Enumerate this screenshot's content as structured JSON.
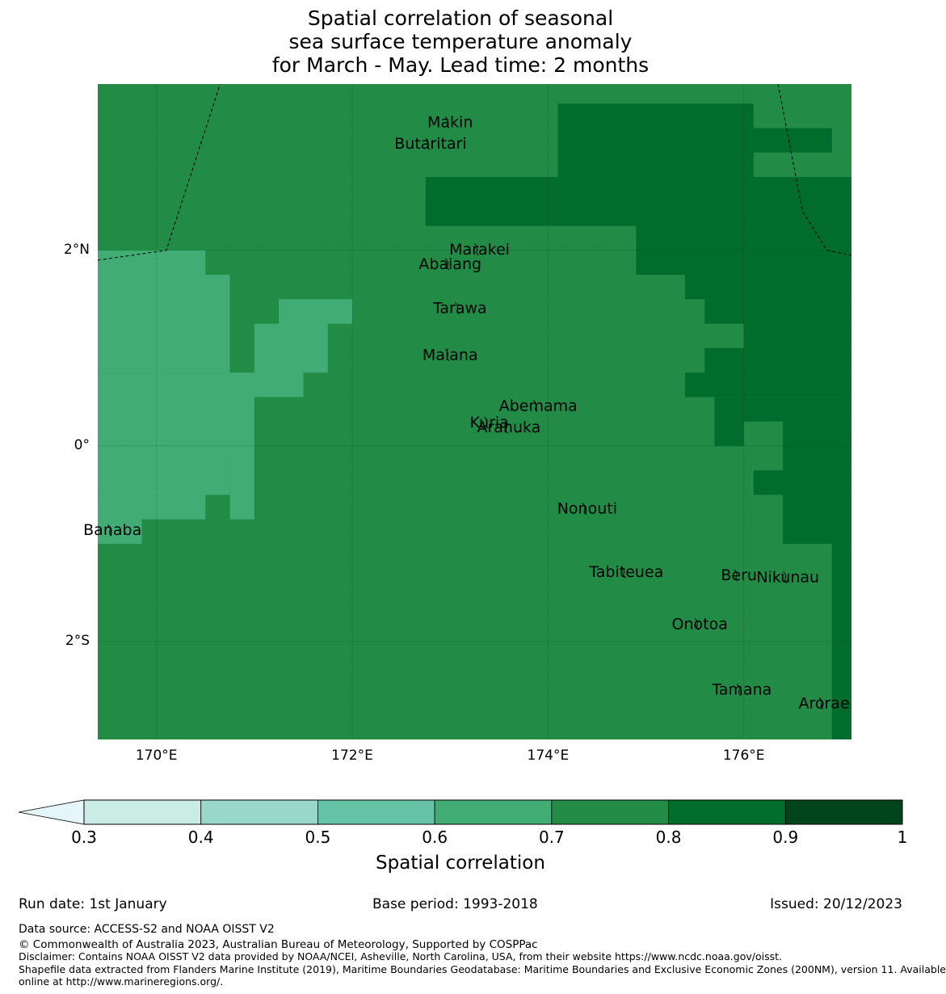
{
  "title": {
    "line1": "Spatial correlation of seasonal",
    "line2": "sea surface temperature anomaly",
    "line3": "for March - May. Lead time: 2 months"
  },
  "map": {
    "lon_range": [
      169.4,
      177.1
    ],
    "lat_range": [
      -3.0,
      3.7
    ],
    "x_ticks": [
      {
        "lon": 170,
        "label": "170°E"
      },
      {
        "lon": 172,
        "label": "172°E"
      },
      {
        "lon": 174,
        "label": "174°E"
      },
      {
        "lon": 176,
        "label": "176°E"
      }
    ],
    "y_ticks": [
      {
        "lat": 2,
        "label": "2°N"
      },
      {
        "lat": 0,
        "label": "0°"
      },
      {
        "lat": -2,
        "label": "2°S"
      }
    ],
    "default_class": 4,
    "grid_regions": [
      {
        "class": 3,
        "lon": [
          169.4,
          170.5
        ],
        "lat": [
          1.0,
          2.0
        ]
      },
      {
        "class": 3,
        "lon": [
          169.4,
          170.75
        ],
        "lat": [
          0.75,
          1.75
        ]
      },
      {
        "class": 3,
        "lon": [
          169.4,
          171.0
        ],
        "lat": [
          0.0,
          0.75
        ]
      },
      {
        "class": 3,
        "lon": [
          169.4,
          170.75
        ],
        "lat": [
          -0.5,
          0.0
        ]
      },
      {
        "class": 3,
        "lon": [
          170.75,
          171.0
        ],
        "lat": [
          -0.75,
          0.0
        ]
      },
      {
        "class": 3,
        "lon": [
          169.4,
          169.85
        ],
        "lat": [
          -1.0,
          -0.5
        ]
      },
      {
        "class": 3,
        "lon": [
          169.85,
          170.5
        ],
        "lat": [
          -0.75,
          -0.5
        ]
      },
      {
        "class": 3,
        "lon": [
          171.0,
          171.5
        ],
        "lat": [
          0.5,
          1.25
        ]
      },
      {
        "class": 3,
        "lon": [
          171.0,
          171.75
        ],
        "lat": [
          0.75,
          1.25
        ]
      },
      {
        "class": 3,
        "lon": [
          171.25,
          172.0
        ],
        "lat": [
          1.25,
          1.5
        ]
      },
      {
        "class": 5,
        "lon": [
          174.1,
          176.1
        ],
        "lat": [
          2.75,
          3.5
        ]
      },
      {
        "class": 5,
        "lon": [
          173.25,
          176.9
        ],
        "lat": [
          2.25,
          2.75
        ]
      },
      {
        "class": 5,
        "lon": [
          172.75,
          173.25
        ],
        "lat": [
          2.25,
          2.75
        ]
      },
      {
        "class": 5,
        "lon": [
          172.75,
          174.0
        ],
        "lat": [
          2.25,
          2.5
        ]
      },
      {
        "class": 5,
        "lon": [
          176.1,
          176.9
        ],
        "lat": [
          3.0,
          3.25
        ]
      },
      {
        "class": 5,
        "lon": [
          176.9,
          177.1
        ],
        "lat": [
          2.0,
          2.75
        ]
      },
      {
        "class": 5,
        "lon": [
          174.9,
          177.1
        ],
        "lat": [
          1.75,
          2.25
        ]
      },
      {
        "class": 5,
        "lon": [
          175.4,
          177.1
        ],
        "lat": [
          1.5,
          1.75
        ]
      },
      {
        "class": 5,
        "lon": [
          175.6,
          177.1
        ],
        "lat": [
          1.25,
          1.5
        ]
      },
      {
        "class": 5,
        "lon": [
          176.0,
          177.1
        ],
        "lat": [
          1.0,
          1.25
        ]
      },
      {
        "class": 5,
        "lon": [
          175.6,
          177.1
        ],
        "lat": [
          0.75,
          1.0
        ]
      },
      {
        "class": 5,
        "lon": [
          175.4,
          177.1
        ],
        "lat": [
          0.5,
          0.75
        ]
      },
      {
        "class": 5,
        "lon": [
          175.7,
          177.1
        ],
        "lat": [
          0.25,
          0.5
        ]
      },
      {
        "class": 5,
        "lon": [
          175.7,
          176.0
        ],
        "lat": [
          0.0,
          0.25
        ]
      },
      {
        "class": 5,
        "lon": [
          176.4,
          177.1
        ],
        "lat": [
          -0.25,
          0.25
        ]
      },
      {
        "class": 5,
        "lon": [
          176.1,
          177.1
        ],
        "lat": [
          -0.5,
          -0.25
        ]
      },
      {
        "class": 5,
        "lon": [
          176.4,
          177.1
        ],
        "lat": [
          -1.0,
          -0.5
        ]
      },
      {
        "class": 5,
        "lon": [
          176.9,
          177.1
        ],
        "lat": [
          -3.0,
          -1.0
        ]
      }
    ],
    "boundaries": [
      [
        [
          169.4,
          1.9
        ],
        [
          170.1,
          2.0
        ],
        [
          170.65,
          3.7
        ]
      ],
      [
        [
          176.35,
          3.7
        ],
        [
          176.6,
          2.4
        ],
        [
          176.85,
          2.0
        ],
        [
          177.1,
          1.95
        ]
      ]
    ],
    "islands": [
      {
        "name": "Makin",
        "lon": 173.0,
        "lat": 3.3
      },
      {
        "name": "Butaritari",
        "lon": 172.8,
        "lat": 3.08
      },
      {
        "name": "Marakei",
        "lon": 173.3,
        "lat": 2.0
      },
      {
        "name": "Abaiang",
        "lon": 173.0,
        "lat": 1.85
      },
      {
        "name": "Tarawa",
        "lon": 173.1,
        "lat": 1.4
      },
      {
        "name": "Maiana",
        "lon": 173.0,
        "lat": 0.92
      },
      {
        "name": "Abemama",
        "lon": 173.9,
        "lat": 0.4
      },
      {
        "name": "Kuria",
        "lon": 173.4,
        "lat": 0.23
      },
      {
        "name": "Aranuka",
        "lon": 173.6,
        "lat": 0.18
      },
      {
        "name": "Nonouti",
        "lon": 174.4,
        "lat": -0.65
      },
      {
        "name": "Banaba",
        "lon": 169.55,
        "lat": -0.87
      },
      {
        "name": "Tabiteuea",
        "lon": 174.8,
        "lat": -1.3
      },
      {
        "name": "Beru",
        "lon": 175.95,
        "lat": -1.33
      },
      {
        "name": "Nikunau",
        "lon": 176.45,
        "lat": -1.35
      },
      {
        "name": "Onotoa",
        "lon": 175.55,
        "lat": -1.83
      },
      {
        "name": "Tamana",
        "lon": 175.98,
        "lat": -2.5
      },
      {
        "name": "Arorae",
        "lon": 176.82,
        "lat": -2.64
      }
    ]
  },
  "colorbar": {
    "classes": [
      {
        "from": "0.3",
        "to": "0.4",
        "color": "#cbece4"
      },
      {
        "from": "0.4",
        "to": "0.5",
        "color": "#99d8c8"
      },
      {
        "from": "0.5",
        "to": "0.6",
        "color": "#65c2a5"
      },
      {
        "from": "0.6",
        "to": "0.7",
        "color": "#41ad75"
      },
      {
        "from": "0.7",
        "to": "0.8",
        "color": "#228b45"
      },
      {
        "from": "0.8",
        "to": "0.9",
        "color": "#006d2c"
      },
      {
        "from": "0.9",
        "to": "1",
        "color": "#00441b"
      }
    ],
    "under_color": "#e5f5f9",
    "ticks": [
      "0.3",
      "0.4",
      "0.5",
      "0.6",
      "0.7",
      "0.8",
      "0.9",
      "1"
    ],
    "label": "Spatial correlation"
  },
  "footer": {
    "run_date": "Run date: 1st January",
    "base_period": "Base period: 1993-2018",
    "issued": "Issued: 20/12/2023",
    "data_source": "Data source: ACCESS-S2 and NOAA OISST V2",
    "copyright": "© Commonwealth of Australia 2023, Australian Bureau of Meteorology, Supported by COSPPac",
    "disclaimer": "Disclaimer: Contains NOAA OISST V2 data provided by NOAA/NCEI, Asheville, North Carolina, USA, from their website https://www.ncdc.noaa.gov/oisst.",
    "shapefile_1": "Shapefile data extracted from Flanders Marine Institute (2019), Maritime Boundaries Geodatabase: Maritime Boundaries and Exclusive Economic Zones (200NM), version 11. Available",
    "shapefile_2": "online at http://www.marineregions.org/."
  }
}
